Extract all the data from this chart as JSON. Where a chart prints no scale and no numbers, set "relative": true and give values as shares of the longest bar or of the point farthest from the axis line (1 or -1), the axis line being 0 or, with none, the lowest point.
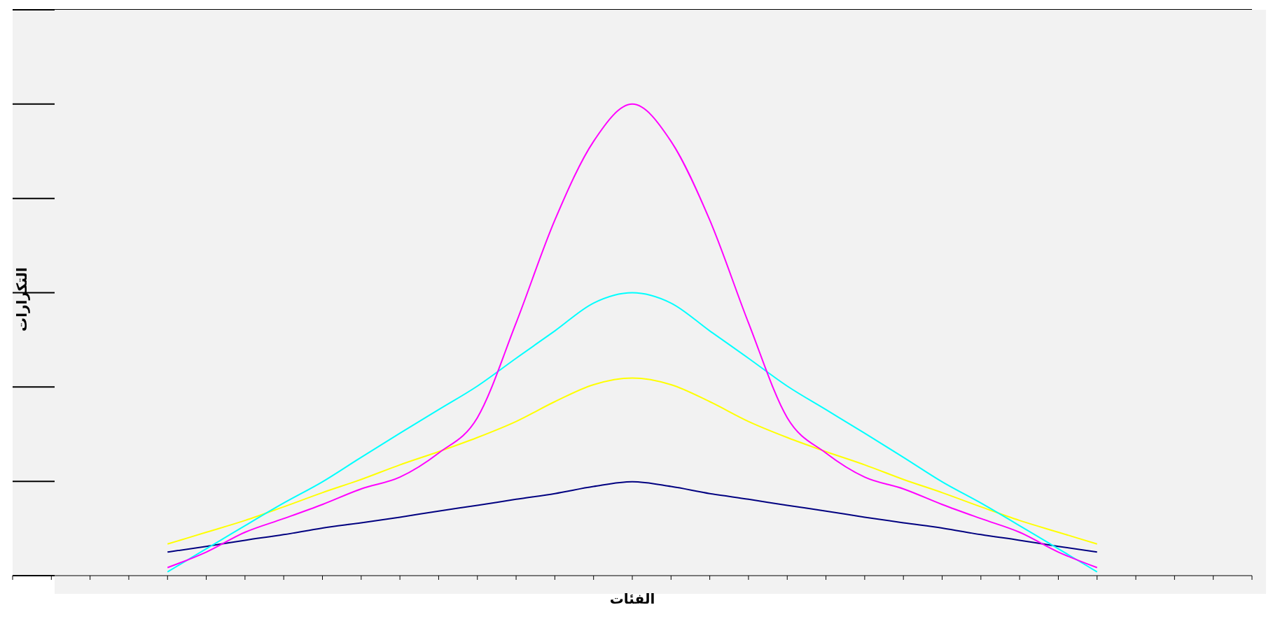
{
  "chart_data": {
    "type": "line",
    "xlabel": "الفئات",
    "ylabel": "التكرارات",
    "relative": true,
    "grid": "y",
    "marker": "none",
    "line_style": "solid",
    "categories": [
      null,
      null,
      null,
      null,
      null,
      null,
      null,
      null,
      null,
      null,
      null,
      null,
      null,
      null,
      null,
      null,
      null,
      null,
      null,
      null,
      null,
      null,
      null,
      null,
      null,
      null,
      null,
      null,
      null,
      null,
      null,
      null,
      null
    ],
    "series": [
      {
        "color": "#000080",
        "values": [
          null,
          null,
          null,
          null,
          0.05,
          0.062,
          0.075,
          0.087,
          0.101,
          0.112,
          0.124,
          0.137,
          0.149,
          0.162,
          0.174,
          0.189,
          0.199,
          0.189,
          0.174,
          0.162,
          0.149,
          0.137,
          0.124,
          0.112,
          0.101,
          0.087,
          0.075,
          0.062,
          0.05,
          null,
          null,
          null,
          null
        ]
      },
      {
        "color": "#ffff00",
        "values": [
          null,
          null,
          null,
          null,
          0.067,
          0.092,
          0.117,
          0.146,
          0.176,
          0.204,
          0.235,
          0.263,
          0.293,
          0.327,
          0.369,
          0.405,
          0.419,
          0.405,
          0.369,
          0.327,
          0.293,
          0.263,
          0.235,
          0.204,
          0.176,
          0.146,
          0.117,
          0.092,
          0.067,
          null,
          null,
          null,
          null
        ]
      },
      {
        "color": "#00ffff",
        "values": [
          null,
          null,
          null,
          null,
          0.008,
          0.057,
          0.106,
          0.154,
          0.199,
          0.251,
          0.302,
          0.352,
          0.402,
          0.461,
          0.519,
          0.578,
          0.6,
          0.578,
          0.519,
          0.461,
          0.402,
          0.352,
          0.302,
          0.251,
          0.199,
          0.154,
          0.106,
          0.057,
          0.008,
          null,
          null,
          null,
          null
        ]
      },
      {
        "color": "#ff00ff",
        "values": [
          null,
          null,
          null,
          null,
          0.017,
          0.05,
          0.092,
          0.121,
          0.151,
          0.184,
          0.209,
          0.26,
          0.335,
          0.536,
          0.754,
          0.921,
          1,
          0.921,
          0.754,
          0.536,
          0.335,
          0.26,
          0.209,
          0.184,
          0.151,
          0.121,
          0.092,
          0.05,
          0.017,
          null,
          null,
          null,
          null
        ]
      }
    ]
  }
}
